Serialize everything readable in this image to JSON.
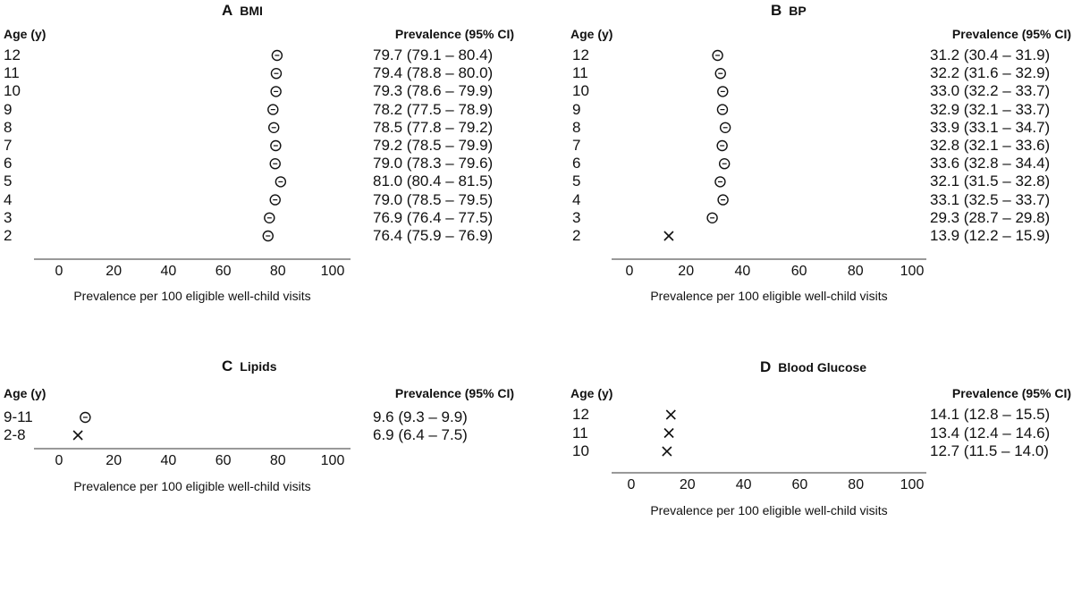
{
  "chart_data": [
    {
      "type": "scatter",
      "panel_letter": "A",
      "title": "BMI",
      "row_header": "Age (y)",
      "value_header": "Prevalence (95% CI)",
      "xlabel": "Prevalence per 100 eligible well-child visits",
      "xlim": [
        0,
        100
      ],
      "xticks": [
        "0",
        "20",
        "40",
        "60",
        "80",
        "100"
      ],
      "rows": [
        {
          "label": "12",
          "value": 79.7,
          "marker": "circle",
          "ci_text": "79.7 (79.1 – 80.4)"
        },
        {
          "label": "11",
          "value": 79.4,
          "marker": "circle",
          "ci_text": "79.4 (78.8 – 80.0)"
        },
        {
          "label": "10",
          "value": 79.3,
          "marker": "circle",
          "ci_text": "79.3 (78.6 – 79.9)"
        },
        {
          "label": "9",
          "value": 78.2,
          "marker": "circle",
          "ci_text": "78.2 (77.5 – 78.9)"
        },
        {
          "label": "8",
          "value": 78.5,
          "marker": "circle",
          "ci_text": "78.5 (77.8 – 79.2)"
        },
        {
          "label": "7",
          "value": 79.2,
          "marker": "circle",
          "ci_text": "79.2 (78.5 – 79.9)"
        },
        {
          "label": "6",
          "value": 79.0,
          "marker": "circle",
          "ci_text": "79.0 (78.3 – 79.6)"
        },
        {
          "label": "5",
          "value": 81.0,
          "marker": "circle",
          "ci_text": "81.0 (80.4 – 81.5)"
        },
        {
          "label": "4",
          "value": 79.0,
          "marker": "circle",
          "ci_text": "79.0 (78.5 – 79.5)"
        },
        {
          "label": "3",
          "value": 76.9,
          "marker": "circle",
          "ci_text": "76.9 (76.4 – 77.5)"
        },
        {
          "label": "2",
          "value": 76.4,
          "marker": "circle",
          "ci_text": "76.4 (75.9 – 76.9)"
        }
      ]
    },
    {
      "type": "scatter",
      "panel_letter": "B",
      "title": "BP",
      "row_header": "Age (y)",
      "value_header": "Prevalence (95% CI)",
      "xlabel": "Prevalence per 100 eligible well-child visits",
      "xlim": [
        0,
        100
      ],
      "xticks": [
        "0",
        "20",
        "40",
        "60",
        "80",
        "100"
      ],
      "rows": [
        {
          "label": "12",
          "value": 31.2,
          "marker": "circle",
          "ci_text": "31.2 (30.4 – 31.9)"
        },
        {
          "label": "11",
          "value": 32.2,
          "marker": "circle",
          "ci_text": "32.2 (31.6 – 32.9)"
        },
        {
          "label": "10",
          "value": 33.0,
          "marker": "circle",
          "ci_text": "33.0 (32.2 – 33.7)"
        },
        {
          "label": "9",
          "value": 32.9,
          "marker": "circle",
          "ci_text": "32.9 (32.1 – 33.7)"
        },
        {
          "label": "8",
          "value": 33.9,
          "marker": "circle",
          "ci_text": "33.9 (33.1 – 34.7)"
        },
        {
          "label": "7",
          "value": 32.8,
          "marker": "circle",
          "ci_text": "32.8 (32.1 – 33.6)"
        },
        {
          "label": "6",
          "value": 33.6,
          "marker": "circle",
          "ci_text": "33.6 (32.8 – 34.4)"
        },
        {
          "label": "5",
          "value": 32.1,
          "marker": "circle",
          "ci_text": "32.1 (31.5 – 32.8)"
        },
        {
          "label": "4",
          "value": 33.1,
          "marker": "circle",
          "ci_text": "33.1 (32.5 – 33.7)"
        },
        {
          "label": "3",
          "value": 29.3,
          "marker": "circle",
          "ci_text": "29.3 (28.7 – 29.8)"
        },
        {
          "label": "2",
          "value": 13.9,
          "marker": "cross",
          "ci_text": "13.9 (12.2 – 15.9)"
        }
      ]
    },
    {
      "type": "scatter",
      "panel_letter": "C",
      "title": "Lipids",
      "row_header": "Age (y)",
      "value_header": "Prevalence (95% CI)",
      "xlabel": "Prevalence per 100 eligible well-child visits",
      "xlim": [
        0,
        100
      ],
      "xticks": [
        "0",
        "20",
        "40",
        "60",
        "80",
        "100"
      ],
      "rows": [
        {
          "label": "9-11",
          "value": 9.6,
          "marker": "circle",
          "ci_text": "9.6 (9.3 – 9.9)"
        },
        {
          "label": "2-8",
          "value": 6.9,
          "marker": "cross",
          "ci_text": "6.9 (6.4 – 7.5)"
        }
      ]
    },
    {
      "type": "scatter",
      "panel_letter": "D",
      "title": "Blood Glucose",
      "row_header": "Age (y)",
      "value_header": "Prevalence (95% CI)",
      "xlabel": "Prevalence per 100 eligible well-child visits",
      "xlim": [
        0,
        100
      ],
      "xticks": [
        "0",
        "20",
        "40",
        "60",
        "80",
        "100"
      ],
      "rows": [
        {
          "label": "12",
          "value": 14.1,
          "marker": "cross",
          "ci_text": "14.1 (12.8 – 15.5)"
        },
        {
          "label": "11",
          "value": 13.4,
          "marker": "cross",
          "ci_text": "13.4 (12.4 – 14.6)"
        },
        {
          "label": "10",
          "value": 12.7,
          "marker": "cross",
          "ci_text": "12.7 (11.5 – 14.0)"
        }
      ]
    }
  ]
}
